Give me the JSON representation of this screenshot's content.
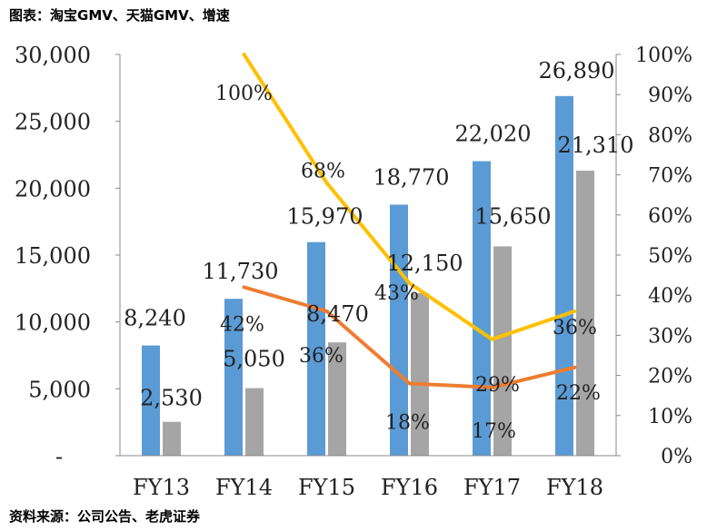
{
  "chart_data": {
    "type": "bar",
    "title": "图表：淘宝GMV、天猫GMV、增速",
    "source": "资料来源：公司公告、老虎证券",
    "categories": [
      "FY13",
      "FY14",
      "FY15",
      "FY16",
      "FY17",
      "FY18"
    ],
    "left_axis": {
      "ticks": [
        "-",
        "5,000",
        "10,000",
        "15,000",
        "20,000",
        "25,000",
        "30,000"
      ],
      "ylim": [
        0,
        30000
      ]
    },
    "right_axis": {
      "ticks": [
        "0%",
        "10%",
        "20%",
        "30%",
        "40%",
        "50%",
        "60%",
        "70%",
        "80%",
        "90%",
        "100%"
      ],
      "ylim": [
        0,
        100
      ]
    },
    "bar_series": [
      {
        "color": "#5b9bd5",
        "values": [
          8240,
          11730,
          15970,
          18770,
          22020,
          26890
        ],
        "labels": [
          "8,240",
          "11,730",
          "15,970",
          "18,770",
          "22,020",
          "26,890"
        ]
      },
      {
        "color": "#a5a5a5",
        "values": [
          2530,
          5050,
          8470,
          12150,
          15650,
          21310
        ],
        "labels": [
          "2,530",
          "5,050",
          "8,470",
          "12,150",
          "15,650",
          "21,310"
        ]
      }
    ],
    "line_series": [
      {
        "color": "#ffc000",
        "values": [
          null,
          100,
          68,
          43,
          29,
          36
        ],
        "labels": [
          null,
          "100%",
          "68%",
          "43%",
          null,
          "36%"
        ]
      },
      {
        "color": "#ed7d31",
        "values": [
          null,
          42,
          36,
          18,
          17,
          22
        ],
        "labels": [
          null,
          "42%",
          "36%",
          "18%",
          "17%",
          "22%"
        ]
      }
    ],
    "extra_labels": [
      "29%"
    ],
    "grid": false,
    "legend": "none"
  }
}
